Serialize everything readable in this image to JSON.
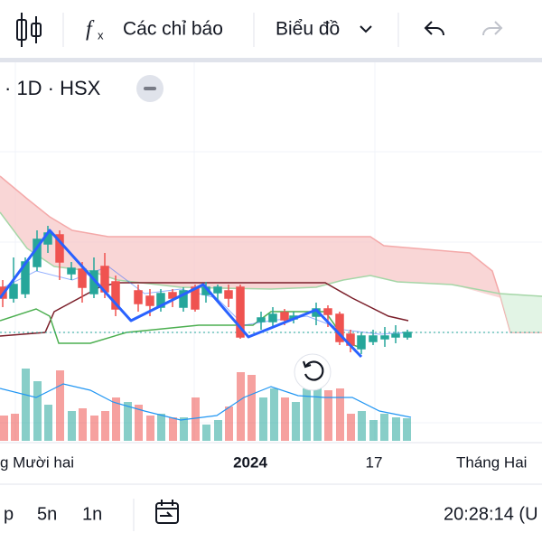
{
  "toolbar": {
    "indicators": "Các chỉ báo",
    "chart_type": "Biểu đồ"
  },
  "header": {
    "symbol_info": "· 1D · HSX"
  },
  "time_axis": {
    "labels": [
      "g Mười hai",
      "2024",
      "17",
      "Tháng Hai"
    ]
  },
  "bottom_bar": {
    "timeframes": [
      "p",
      "5n",
      "1n"
    ],
    "clock": "20:28:14 (U"
  }
}
